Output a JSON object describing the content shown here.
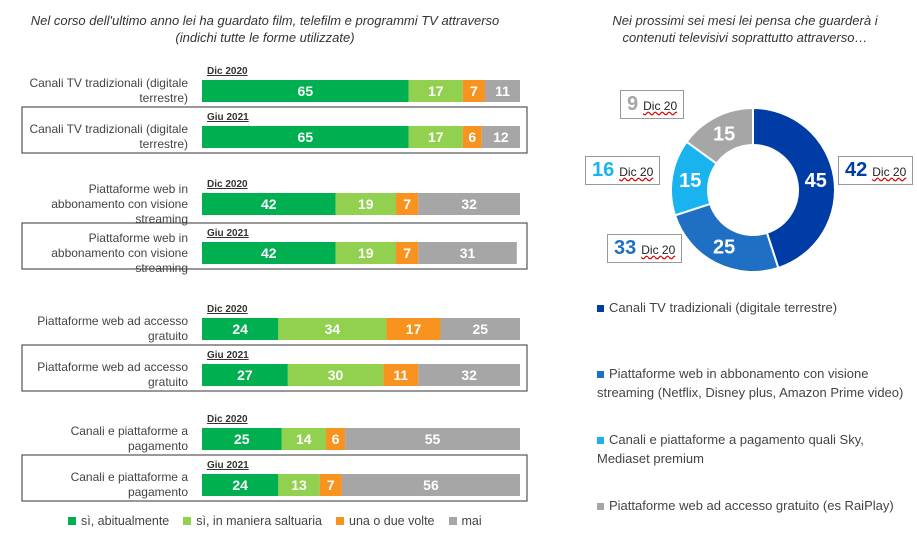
{
  "chart_data": [
    {
      "type": "bar",
      "title": "Nel corso dell'ultimo anno lei ha guardato film, telefilm e programmi TV attraverso (indichi tutte le forme utilizzate)",
      "categories": [
        "Canali TV tradizionali (digitale terrestre)",
        "Canali TV tradizionali (digitale terrestre)",
        "Piattaforme web in abbonamento con visione streaming",
        "Piattaforme web in abbonamento con visione streaming",
        "Piattaforme web ad accesso gratuito",
        "Piattaforme web ad accesso gratuito",
        "Canali e piattaforme a pagamento",
        "Canali e piattaforme a pagamento"
      ],
      "periods": [
        "Dic 2020",
        "Giu 2021",
        "Dic 2020",
        "Giu 2021",
        "Dic 2020",
        "Giu 2021",
        "Dic 2020",
        "Giu 2021"
      ],
      "series": [
        {
          "name": "sì, abitualmente",
          "color": "#00b050",
          "values": [
            65,
            65,
            42,
            42,
            24,
            27,
            25,
            24
          ]
        },
        {
          "name": "sì, in maniera saltuaria",
          "color": "#92d050",
          "values": [
            17,
            17,
            19,
            19,
            34,
            30,
            14,
            13
          ]
        },
        {
          "name": "una o due volte",
          "color": "#f7931e",
          "values": [
            7,
            6,
            7,
            7,
            17,
            11,
            6,
            7
          ]
        },
        {
          "name": "mai",
          "color": "#a6a6a6",
          "values": [
            11,
            12,
            32,
            31,
            25,
            32,
            55,
            56
          ]
        }
      ]
    },
    {
      "type": "pie",
      "title": "Nei prossimi sei mesi lei pensa che guarderà i contenuti televisivi soprattutto attraverso…",
      "categories": [
        "Canali TV tradizionali (digitale terrestre)",
        "Piattaforme web in abbonamento con visione streaming (Netflix, Disney plus, Amazon Prime video)",
        "Canali e piattaforme a pagamento quali Sky, Mediaset premium",
        "Piattaforme web ad accesso gratuito (es RaiPlay)"
      ],
      "colors": [
        "#003ca6",
        "#1f6fc4",
        "#19b4f0",
        "#a6a6a6"
      ],
      "values": [
        45,
        25,
        15,
        15
      ],
      "previous_values": [
        42,
        33,
        16,
        9
      ],
      "previous_label": "Dic 20"
    }
  ]
}
